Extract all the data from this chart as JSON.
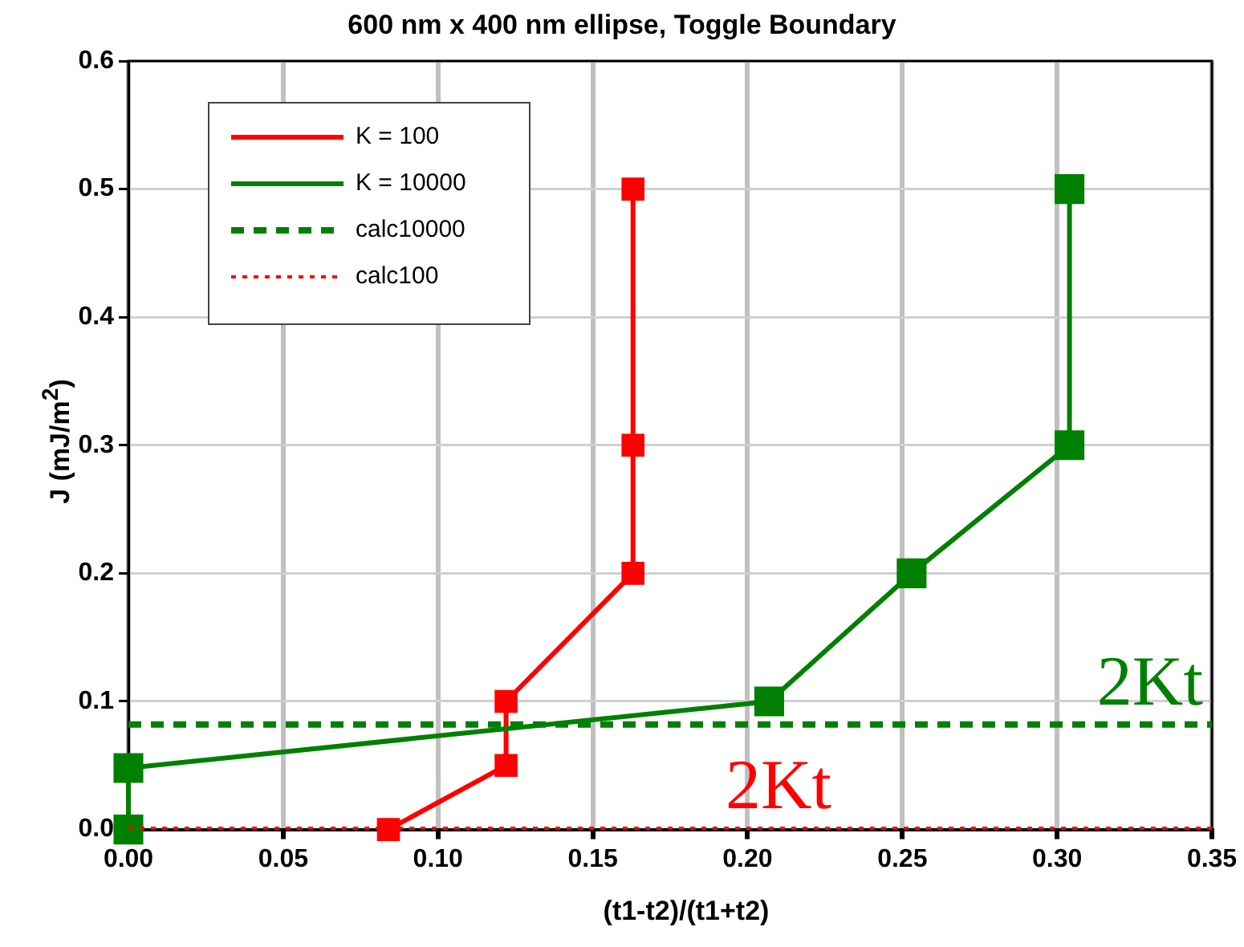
{
  "chart_data": {
    "type": "line",
    "title": "600 nm x 400 nm ellipse, Toggle Boundary",
    "xlabel": "(t1-t2)/(t1+t2)",
    "ylabel": "J (mJ/m$^{2}$)",
    "series": [
      {
        "name": "K = 100",
        "color": "#ff0000",
        "marker": "square",
        "line_style": "solid",
        "x": [
          0.084,
          0.122,
          0.122,
          0.163,
          0.163,
          0.163
        ],
        "values": [
          0,
          0.05,
          0.1,
          0.2,
          0.3,
          0.5
        ]
      },
      {
        "name": "K = 10000",
        "color": "#008000",
        "marker": "square",
        "line_style": "solid",
        "x": [
          0,
          0,
          0.207,
          0.253,
          0.304,
          0.304
        ],
        "values": [
          0,
          0.048,
          0.1,
          0.2,
          0.3,
          0.5
        ]
      },
      {
        "name": "calc10000",
        "color": "#008000",
        "marker": "none",
        "line_style": "dashed",
        "x": [
          0,
          0.35
        ],
        "values": [
          0.082,
          0.082
        ]
      },
      {
        "name": "calc100",
        "color": "#ff0000",
        "marker": "none",
        "line_style": "dotted",
        "x": [
          0,
          0.35
        ],
        "values": [
          0.001,
          0.001
        ]
      }
    ],
    "xlim": [
      0,
      0.35
    ],
    "xticks": [
      {
        "value": 0,
        "label": "0.00"
      },
      {
        "value": 0.05,
        "label": "0.05"
      },
      {
        "value": 0.1,
        "label": "0.10"
      },
      {
        "value": 0.15,
        "label": "0.15"
      },
      {
        "value": 0.2,
        "label": "0.20"
      },
      {
        "value": 0.25,
        "label": "0.25"
      },
      {
        "value": 0.3,
        "label": "0.30"
      },
      {
        "value": 0.35,
        "label": "0.35"
      }
    ],
    "ylim": [
      0,
      0.6
    ],
    "yticks": [
      {
        "value": 0,
        "label": "0.0"
      },
      {
        "value": 0.1,
        "label": "0.1"
      },
      {
        "value": 0.2,
        "label": "0.2"
      },
      {
        "value": 0.3,
        "label": "0.3"
      },
      {
        "value": 0.4,
        "label": "0.4"
      },
      {
        "value": 0.5,
        "label": "0.5"
      },
      {
        "value": 0.6,
        "label": "0.6"
      }
    ],
    "grid": true,
    "legend": "top left",
    "annotations": [
      {
        "text": "2Kt",
        "x": 0.33,
        "y": 0.082
      },
      {
        "text": "2Kt",
        "x": 0.21,
        "y": 0.001
      }
    ]
  }
}
